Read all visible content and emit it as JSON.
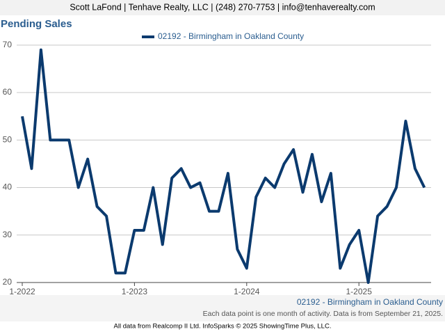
{
  "header": "Scott LaFond | Tenhave Realty, LLC | (248) 270-7753 | info@tenhaverealty.com",
  "chart_data": {
    "type": "line",
    "title": "Pending Sales",
    "categories": [
      "1-2022",
      null,
      null,
      null,
      null,
      null,
      null,
      null,
      null,
      null,
      null,
      null,
      "1-2023",
      null,
      null,
      null,
      null,
      null,
      null,
      null,
      null,
      null,
      null,
      null,
      "1-2024",
      null,
      null,
      null,
      null,
      null,
      null,
      null,
      null,
      null,
      null,
      null,
      "1-2025",
      null,
      null,
      null,
      null,
      null,
      null,
      null
    ],
    "series": [
      {
        "name": "02192 - Birmingham in Oakland County",
        "color": "#0b3a6e",
        "values": [
          55,
          44,
          69,
          50,
          50,
          50,
          40,
          46,
          36,
          34,
          22,
          22,
          31,
          31,
          40,
          28,
          42,
          44,
          40,
          41,
          35,
          35,
          43,
          27,
          23,
          38,
          42,
          40,
          45,
          48,
          39,
          47,
          37,
          43,
          23,
          28,
          31,
          20,
          34,
          36,
          40,
          54,
          44,
          40
        ]
      }
    ],
    "ylim": [
      20,
      71
    ],
    "yticks": [
      20,
      30,
      40,
      50,
      60,
      70
    ],
    "grid": true,
    "note": "Each data point is one month of activity. Data is from September 21, 2025."
  },
  "footer": "All data from Realcomp II Ltd. InfoSparks © 2025 ShowingTime Plus, LLC."
}
